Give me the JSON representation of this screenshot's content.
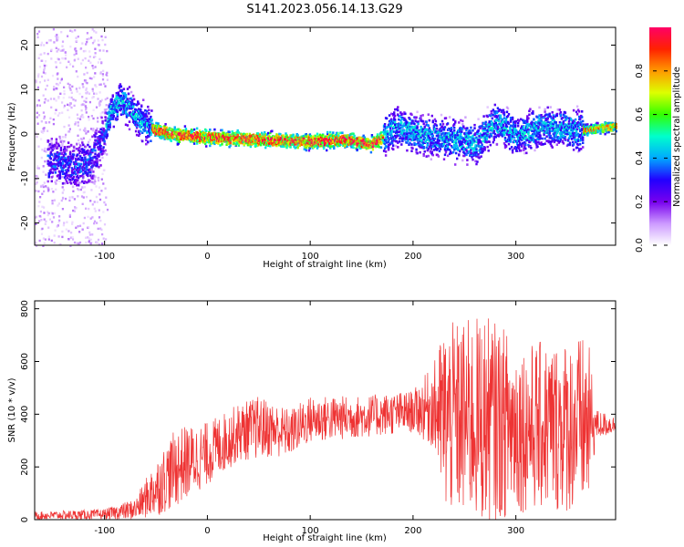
{
  "title": "S141.2023.056.14.13.G29",
  "chart_data": [
    {
      "type": "heatmap",
      "xlabel": "Height of straight line (km)",
      "ylabel": "Frequency (Hz)",
      "xlim": [
        -168,
        397
      ],
      "ylim": [
        -25,
        24
      ],
      "x_ticks": [
        -100,
        0,
        100,
        200,
        300
      ],
      "y_ticks": [
        -20,
        -10,
        0,
        10,
        20
      ],
      "colorbar": {
        "label": "Normalized spectral amplitude",
        "range": [
          0,
          1
        ],
        "ticks": [
          0.0,
          0.2,
          0.4,
          0.6,
          0.8
        ],
        "colormap": [
          "#ffffff",
          "#cc99ff",
          "#7700ee",
          "#2200ff",
          "#00aaff",
          "#00ffcc",
          "#33ff00",
          "#ddff00",
          "#ff9900",
          "#ff2200",
          "#ff0066"
        ]
      },
      "ridge_frequency_hz": [
        {
          "x": -150,
          "y": -6
        },
        {
          "x": -130,
          "y": -7
        },
        {
          "x": -115,
          "y": -6
        },
        {
          "x": -105,
          "y": -2
        },
        {
          "x": -95,
          "y": 5
        },
        {
          "x": -85,
          "y": 8
        },
        {
          "x": -75,
          "y": 6
        },
        {
          "x": -65,
          "y": 3
        },
        {
          "x": -50,
          "y": 1
        },
        {
          "x": -30,
          "y": 0
        },
        {
          "x": 0,
          "y": -0.5
        },
        {
          "x": 50,
          "y": -1
        },
        {
          "x": 100,
          "y": -1.5
        },
        {
          "x": 130,
          "y": -1
        },
        {
          "x": 160,
          "y": -2
        },
        {
          "x": 185,
          "y": 2
        },
        {
          "x": 210,
          "y": 0
        },
        {
          "x": 240,
          "y": -1
        },
        {
          "x": 260,
          "y": -2
        },
        {
          "x": 280,
          "y": 3
        },
        {
          "x": 300,
          "y": 0
        },
        {
          "x": 330,
          "y": 2
        },
        {
          "x": 360,
          "y": 1
        },
        {
          "x": 397,
          "y": 2
        }
      ]
    },
    {
      "type": "line",
      "xlabel": "Height of straight line (km)",
      "ylabel": "SNR (10 * v/v)",
      "xlim": [
        -168,
        397
      ],
      "ylim": [
        0,
        830
      ],
      "x_ticks": [
        -100,
        0,
        100,
        200,
        300
      ],
      "y_ticks": [
        0,
        200,
        400,
        600,
        800
      ],
      "line_color": "#ee3333",
      "series": [
        {
          "envelope": [
            {
              "x": -168,
              "mean": 15,
              "spread": 15
            },
            {
              "x": -100,
              "mean": 20,
              "spread": 20
            },
            {
              "x": -70,
              "mean": 40,
              "spread": 40
            },
            {
              "x": -50,
              "mean": 120,
              "spread": 110
            },
            {
              "x": -30,
              "mean": 200,
              "spread": 150
            },
            {
              "x": 0,
              "mean": 250,
              "spread": 120
            },
            {
              "x": 30,
              "mean": 330,
              "spread": 110
            },
            {
              "x": 50,
              "mean": 350,
              "spread": 120
            },
            {
              "x": 80,
              "mean": 330,
              "spread": 90
            },
            {
              "x": 100,
              "mean": 380,
              "spread": 90
            },
            {
              "x": 150,
              "mean": 390,
              "spread": 80
            },
            {
              "x": 200,
              "mean": 410,
              "spread": 80
            },
            {
              "x": 220,
              "mean": 430,
              "spread": 160
            },
            {
              "x": 230,
              "mean": 380,
              "spread": 360
            },
            {
              "x": 270,
              "mean": 380,
              "spread": 400
            },
            {
              "x": 310,
              "mean": 350,
              "spread": 320
            },
            {
              "x": 370,
              "mean": 360,
              "spread": 340
            },
            {
              "x": 378,
              "mean": 360,
              "spread": 60
            },
            {
              "x": 397,
              "mean": 360,
              "spread": 30
            }
          ]
        }
      ]
    }
  ]
}
